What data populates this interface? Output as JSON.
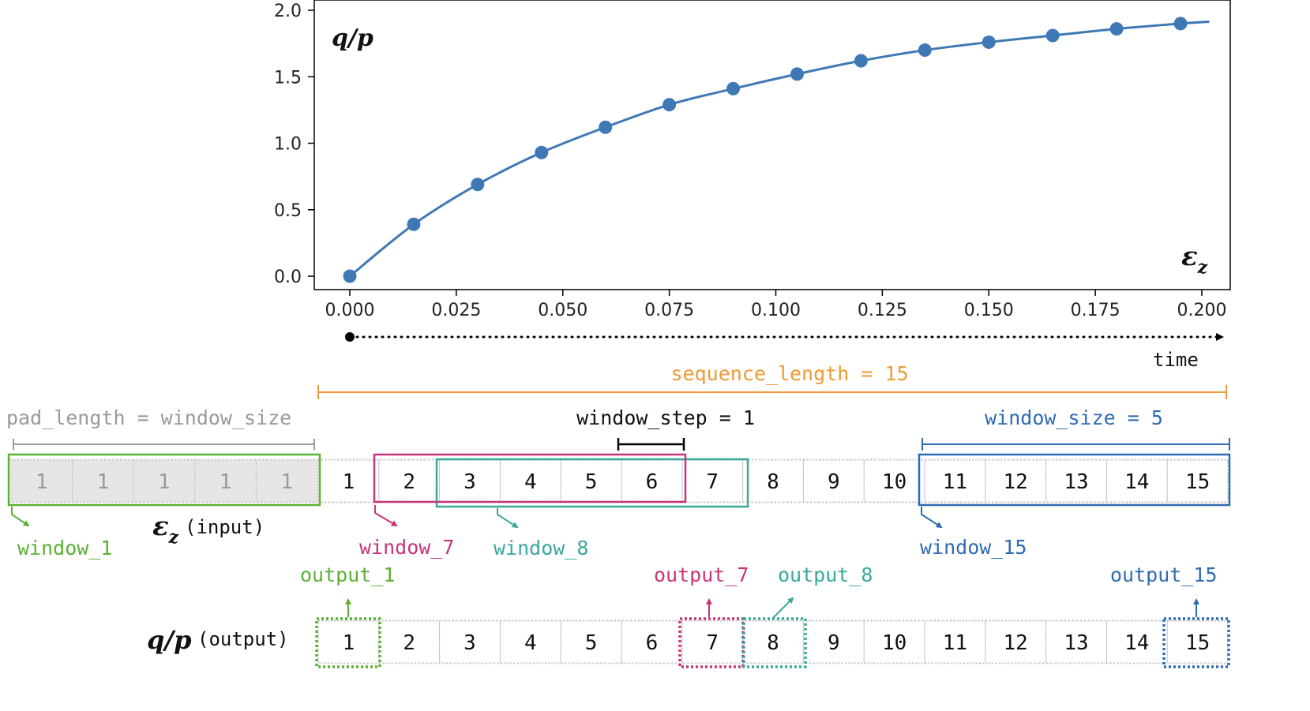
{
  "colors": {
    "series": "#3f79b5",
    "window_1": "#5cb033",
    "window_7": "#c8347a",
    "window_8": "#3aa89a",
    "window_15": "#2f6bb3",
    "sequence": "#ef9a36",
    "pad": "#9a9a9a"
  },
  "chart_data": {
    "type": "line",
    "title": "",
    "ylabel": "q/p",
    "xlabel": "ε_z",
    "xlim": [
      0.0,
      0.2
    ],
    "ylim": [
      0.0,
      2.0
    ],
    "x_ticks": [
      "0.000",
      "0.025",
      "0.050",
      "0.075",
      "0.100",
      "0.125",
      "0.150",
      "0.175",
      "0.200"
    ],
    "y_ticks": [
      "0.0",
      "0.5",
      "1.0",
      "1.5",
      "2.0"
    ],
    "series": [
      {
        "name": "q/p",
        "x": [
          0.0,
          0.015,
          0.03,
          0.045,
          0.06,
          0.075,
          0.09,
          0.105,
          0.12,
          0.135,
          0.15,
          0.165,
          0.18,
          0.195
        ],
        "values": [
          0.0,
          0.39,
          0.69,
          0.93,
          1.12,
          1.29,
          1.41,
          1.52,
          1.62,
          1.7,
          1.76,
          1.81,
          1.86,
          1.9
        ]
      }
    ]
  },
  "labels": {
    "y_axis": "q/p",
    "x_axis_symbol": "ε",
    "x_axis_sub": "z",
    "time": "time",
    "sequence_length": "sequence_length = 15",
    "pad_length": "pad_length = window_size",
    "window_step": "window_step = 1",
    "window_size": "window_size = 5",
    "input_symbol": "ε",
    "input_sub": "z",
    "input_suffix": "(input)",
    "output_symbol": "q/p",
    "output_suffix": "(output)",
    "window_1": "window_1",
    "window_7": "window_7",
    "window_8": "window_8",
    "window_15": "window_15",
    "output_1": "output_1",
    "output_7": "output_7",
    "output_8": "output_8",
    "output_15": "output_15"
  },
  "input_row": {
    "pad_cells": [
      "1",
      "1",
      "1",
      "1",
      "1"
    ],
    "cells": [
      "1",
      "2",
      "3",
      "4",
      "5",
      "6",
      "7",
      "8",
      "9",
      "10",
      "11",
      "12",
      "13",
      "14",
      "15"
    ]
  },
  "output_row": {
    "cells": [
      "1",
      "2",
      "3",
      "4",
      "5",
      "6",
      "7",
      "8",
      "9",
      "10",
      "11",
      "12",
      "13",
      "14",
      "15"
    ]
  }
}
